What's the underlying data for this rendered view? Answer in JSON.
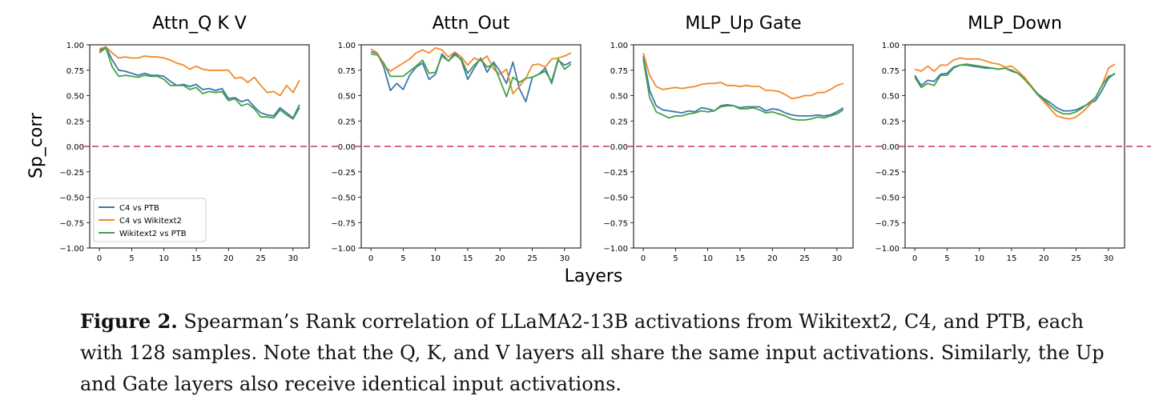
{
  "figure": {
    "ylabel": "Sp_corr",
    "xlabel": "Layers",
    "legend": [
      "C4 vs PTB",
      "C4 vs Wikitext2",
      "Wikitext2 vs PTB"
    ],
    "colors": {
      "c4_ptb": "#3a77b0",
      "c4_wiki": "#f08a2d",
      "wiki_ptb": "#46a046",
      "zero_line": "#d9667a"
    }
  },
  "chart_data": [
    {
      "type": "line",
      "title": "Attn_Q K V",
      "xlabel": "Layers",
      "ylabel": "Sp_corr",
      "xlim": [
        -1.5,
        32.5
      ],
      "ylim": [
        -1.0,
        1.0
      ],
      "xticks": [
        0,
        5,
        10,
        15,
        20,
        25,
        30
      ],
      "yticks": [
        "1.00",
        "0.75",
        "0.50",
        "0.25",
        "0.00",
        "−0.25",
        "−0.50",
        "−0.75",
        "−1.00"
      ],
      "x": [
        0,
        1,
        2,
        3,
        4,
        5,
        6,
        7,
        8,
        9,
        10,
        11,
        12,
        13,
        14,
        15,
        16,
        17,
        18,
        19,
        20,
        21,
        22,
        23,
        24,
        25,
        26,
        27,
        28,
        29,
        30,
        31
      ],
      "series": [
        {
          "name": "C4 vs PTB",
          "values": [
            0.94,
            0.98,
            0.85,
            0.75,
            0.74,
            0.72,
            0.7,
            0.72,
            0.7,
            0.7,
            0.69,
            0.64,
            0.6,
            0.61,
            0.59,
            0.61,
            0.56,
            0.57,
            0.55,
            0.57,
            0.47,
            0.48,
            0.44,
            0.46,
            0.39,
            0.33,
            0.31,
            0.3,
            0.38,
            0.33,
            0.28,
            0.41
          ]
        },
        {
          "name": "C4 vs Wikitext2",
          "values": [
            0.96,
            0.98,
            0.92,
            0.87,
            0.88,
            0.87,
            0.87,
            0.89,
            0.88,
            0.88,
            0.87,
            0.85,
            0.82,
            0.8,
            0.76,
            0.79,
            0.76,
            0.75,
            0.75,
            0.75,
            0.75,
            0.67,
            0.68,
            0.63,
            0.68,
            0.6,
            0.53,
            0.54,
            0.5,
            0.6,
            0.53,
            0.65
          ]
        },
        {
          "name": "Wikitext2 vs PTB",
          "values": [
            0.92,
            0.97,
            0.78,
            0.69,
            0.7,
            0.69,
            0.68,
            0.7,
            0.69,
            0.69,
            0.66,
            0.6,
            0.6,
            0.6,
            0.56,
            0.58,
            0.52,
            0.54,
            0.53,
            0.54,
            0.45,
            0.47,
            0.4,
            0.42,
            0.37,
            0.29,
            0.29,
            0.28,
            0.36,
            0.31,
            0.27,
            0.38
          ]
        }
      ],
      "hline": 0.0
    },
    {
      "type": "line",
      "title": "Attn_Out",
      "xlim": [
        -1.5,
        32.5
      ],
      "ylim": [
        -1.0,
        1.0
      ],
      "xticks": [
        0,
        5,
        10,
        15,
        20,
        25,
        30
      ],
      "yticks": [
        "1.00",
        "0.75",
        "0.50",
        "0.25",
        "0.00",
        "−0.25",
        "−0.50",
        "−0.75",
        "−1.00"
      ],
      "x": [
        0,
        1,
        2,
        3,
        4,
        5,
        6,
        7,
        8,
        9,
        10,
        11,
        12,
        13,
        14,
        15,
        16,
        17,
        18,
        19,
        20,
        21,
        22,
        23,
        24,
        25,
        26,
        27,
        28,
        29,
        30,
        31
      ],
      "series": [
        {
          "name": "C4 vs PTB",
          "values": [
            0.93,
            0.92,
            0.78,
            0.55,
            0.62,
            0.56,
            0.7,
            0.78,
            0.82,
            0.66,
            0.71,
            0.91,
            0.84,
            0.92,
            0.85,
            0.66,
            0.77,
            0.87,
            0.73,
            0.83,
            0.74,
            0.62,
            0.83,
            0.57,
            0.44,
            0.68,
            0.71,
            0.77,
            0.62,
            0.85,
            0.8,
            0.83
          ]
        },
        {
          "name": "C4 vs Wikitext2",
          "values": [
            0.96,
            0.92,
            0.8,
            0.74,
            0.78,
            0.82,
            0.86,
            0.92,
            0.95,
            0.92,
            0.97,
            0.95,
            0.88,
            0.93,
            0.88,
            0.8,
            0.87,
            0.84,
            0.89,
            0.76,
            0.71,
            0.76,
            0.52,
            0.59,
            0.67,
            0.8,
            0.81,
            0.78,
            0.86,
            0.87,
            0.89,
            0.92
          ]
        },
        {
          "name": "Wikitext2 vs PTB",
          "values": [
            0.91,
            0.9,
            0.82,
            0.69,
            0.69,
            0.69,
            0.74,
            0.79,
            0.85,
            0.72,
            0.73,
            0.89,
            0.84,
            0.9,
            0.86,
            0.72,
            0.8,
            0.86,
            0.78,
            0.81,
            0.65,
            0.49,
            0.68,
            0.63,
            0.67,
            0.68,
            0.71,
            0.74,
            0.64,
            0.86,
            0.76,
            0.81
          ]
        }
      ],
      "hline": 0.0
    },
    {
      "type": "line",
      "title": "MLP_Up Gate",
      "xlim": [
        -1.5,
        32.5
      ],
      "ylim": [
        -1.0,
        1.0
      ],
      "xticks": [
        0,
        5,
        10,
        15,
        20,
        25,
        30
      ],
      "yticks": [
        "1.00",
        "0.75",
        "0.50",
        "0.25",
        "0.00",
        "−0.25",
        "−0.50",
        "−0.75",
        "−1.00"
      ],
      "x": [
        0,
        1,
        2,
        3,
        4,
        5,
        6,
        7,
        8,
        9,
        10,
        11,
        12,
        13,
        14,
        15,
        16,
        17,
        18,
        19,
        20,
        21,
        22,
        23,
        24,
        25,
        26,
        27,
        28,
        29,
        30,
        31
      ],
      "series": [
        {
          "name": "C4 vs PTB",
          "values": [
            0.89,
            0.55,
            0.4,
            0.36,
            0.35,
            0.34,
            0.33,
            0.35,
            0.34,
            0.38,
            0.37,
            0.35,
            0.4,
            0.41,
            0.4,
            0.38,
            0.39,
            0.39,
            0.39,
            0.35,
            0.37,
            0.36,
            0.33,
            0.31,
            0.3,
            0.3,
            0.3,
            0.31,
            0.3,
            0.31,
            0.34,
            0.38
          ]
        },
        {
          "name": "C4 vs Wikitext2",
          "values": [
            0.92,
            0.7,
            0.59,
            0.56,
            0.57,
            0.58,
            0.57,
            0.58,
            0.59,
            0.61,
            0.62,
            0.62,
            0.63,
            0.6,
            0.6,
            0.59,
            0.6,
            0.59,
            0.59,
            0.55,
            0.55,
            0.54,
            0.51,
            0.47,
            0.48,
            0.5,
            0.5,
            0.53,
            0.53,
            0.56,
            0.6,
            0.62
          ]
        },
        {
          "name": "Wikitext2 vs PTB",
          "values": [
            0.86,
            0.48,
            0.34,
            0.31,
            0.28,
            0.3,
            0.3,
            0.32,
            0.33,
            0.35,
            0.34,
            0.35,
            0.39,
            0.4,
            0.4,
            0.37,
            0.37,
            0.38,
            0.36,
            0.33,
            0.34,
            0.32,
            0.3,
            0.27,
            0.26,
            0.26,
            0.27,
            0.29,
            0.28,
            0.3,
            0.32,
            0.36
          ]
        }
      ],
      "hline": 0.0
    },
    {
      "type": "line",
      "title": "MLP_Down",
      "xlim": [
        -1.5,
        32.5
      ],
      "ylim": [
        -1.0,
        1.0
      ],
      "xticks": [
        0,
        5,
        10,
        15,
        20,
        25,
        30
      ],
      "yticks": [
        "1.00",
        "0.75",
        "0.50",
        "0.25",
        "0.00",
        "−0.25",
        "−0.50",
        "−0.75",
        "−1.00"
      ],
      "x": [
        0,
        1,
        2,
        3,
        4,
        5,
        6,
        7,
        8,
        9,
        10,
        11,
        12,
        13,
        14,
        15,
        16,
        17,
        18,
        19,
        20,
        21,
        22,
        23,
        24,
        25,
        26,
        27,
        28,
        29,
        30,
        31
      ],
      "series": [
        {
          "name": "C4 vs PTB",
          "values": [
            0.7,
            0.6,
            0.65,
            0.64,
            0.71,
            0.72,
            0.78,
            0.8,
            0.8,
            0.79,
            0.78,
            0.77,
            0.77,
            0.76,
            0.77,
            0.75,
            0.72,
            0.67,
            0.6,
            0.52,
            0.47,
            0.43,
            0.38,
            0.35,
            0.35,
            0.36,
            0.39,
            0.42,
            0.45,
            0.55,
            0.67,
            0.72
          ]
        },
        {
          "name": "C4 vs Wikitext2",
          "values": [
            0.76,
            0.74,
            0.79,
            0.74,
            0.8,
            0.8,
            0.85,
            0.87,
            0.86,
            0.86,
            0.86,
            0.84,
            0.82,
            0.81,
            0.78,
            0.79,
            0.74,
            0.68,
            0.6,
            0.51,
            0.44,
            0.37,
            0.3,
            0.28,
            0.27,
            0.29,
            0.34,
            0.4,
            0.48,
            0.6,
            0.77,
            0.81
          ]
        },
        {
          "name": "Wikitext2 vs PTB",
          "values": [
            0.68,
            0.58,
            0.62,
            0.6,
            0.7,
            0.7,
            0.77,
            0.8,
            0.81,
            0.8,
            0.79,
            0.78,
            0.77,
            0.76,
            0.77,
            0.74,
            0.72,
            0.66,
            0.59,
            0.51,
            0.46,
            0.4,
            0.35,
            0.32,
            0.32,
            0.34,
            0.38,
            0.43,
            0.48,
            0.6,
            0.69,
            0.71
          ]
        }
      ],
      "hline": 0.0
    }
  ],
  "caption": {
    "label": "Figure 2.",
    "text": " Spearman’s Rank correlation of LLaMA2-13B activations from Wikitext2, C4, and PTB, each with 128 samples. Note that the Q, K, and V layers all share the same input activations. Similarly, the Up and Gate layers also receive identical input activations."
  }
}
